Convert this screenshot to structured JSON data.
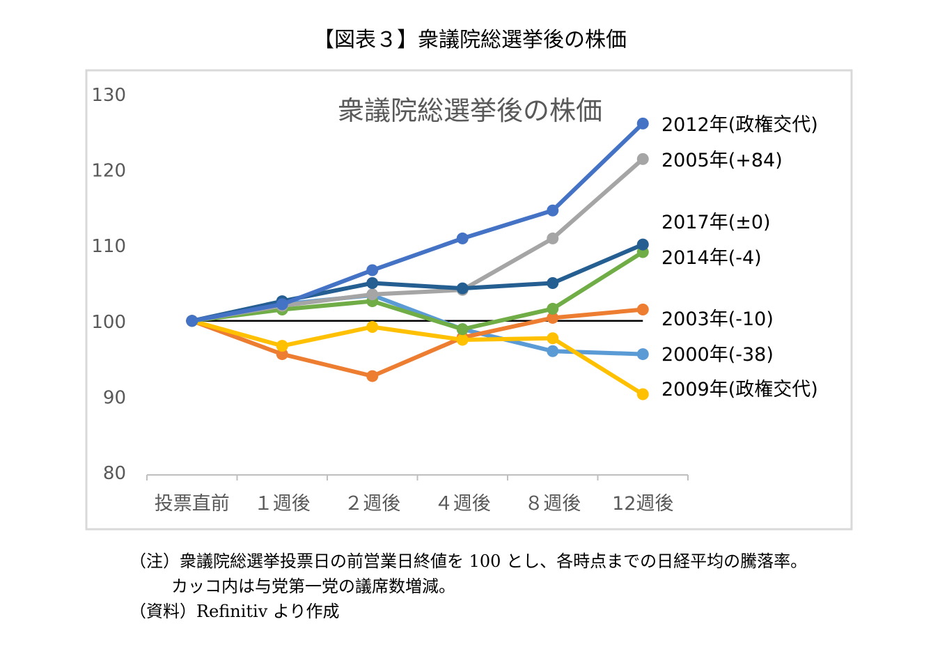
{
  "figure_title": "【図表３】衆議院総選挙後の株価",
  "notes": {
    "line1": "（注）衆議院総選挙投票日の前営業日終値を 100 とし、各時点までの日経平均の騰落率。",
    "line2": "カッコ内は与党第一党の議席数増減。",
    "source": "（資料）Refinitiv より作成"
  },
  "colors": {
    "baseline": "#000000",
    "axis": "#bfbfbf",
    "frame": "#d9d9d9",
    "tick_label": "#595959",
    "chart_title": "#595959"
  },
  "chart_data": {
    "type": "line",
    "title": "衆議院総選挙後の株価",
    "xlabel": "",
    "ylabel": "",
    "ylim": [
      80,
      130
    ],
    "yticks": [
      80,
      90,
      100,
      110,
      120,
      130
    ],
    "grid": false,
    "categories": [
      "投票直前",
      "１週後",
      "２週後",
      "４週後",
      "８週後",
      "12週後"
    ],
    "baseline_value": 100,
    "series": [
      {
        "name": "2000年(-38)",
        "color": "#5b9bd5",
        "values": [
          100,
          102.2,
          103.4,
          98.9,
          96.0,
          95.6
        ]
      },
      {
        "name": "2003年(-10)",
        "color": "#ed7d31",
        "values": [
          100,
          95.6,
          92.7,
          97.8,
          100.4,
          101.5
        ]
      },
      {
        "name": "2009年(政権交代)",
        "color": "#ffc000",
        "values": [
          100,
          96.7,
          99.2,
          97.5,
          97.7,
          90.3
        ]
      },
      {
        "name": "2014年(-4)",
        "color": "#70ad47",
        "values": [
          100,
          101.5,
          102.6,
          98.9,
          101.6,
          109.1
        ]
      },
      {
        "name": "2005年(+84)",
        "color": "#a5a5a5",
        "values": [
          100,
          102.0,
          103.5,
          104.1,
          110.9,
          121.4
        ]
      },
      {
        "name": "2017年(±0)",
        "color": "#255e91",
        "values": [
          100,
          102.6,
          105.0,
          104.3,
          105.0,
          110.1
        ]
      },
      {
        "name": "2012年(政権交代)",
        "color": "#4472c4",
        "values": [
          100,
          102.2,
          106.7,
          110.9,
          114.6,
          126.1
        ]
      }
    ],
    "label_order": [
      "2012年(政権交代)",
      "2005年(+84)",
      "2017年(±0)",
      "2014年(-4)",
      "2003年(-10)",
      "2000年(-38)",
      "2009年(政権交代)"
    ]
  }
}
